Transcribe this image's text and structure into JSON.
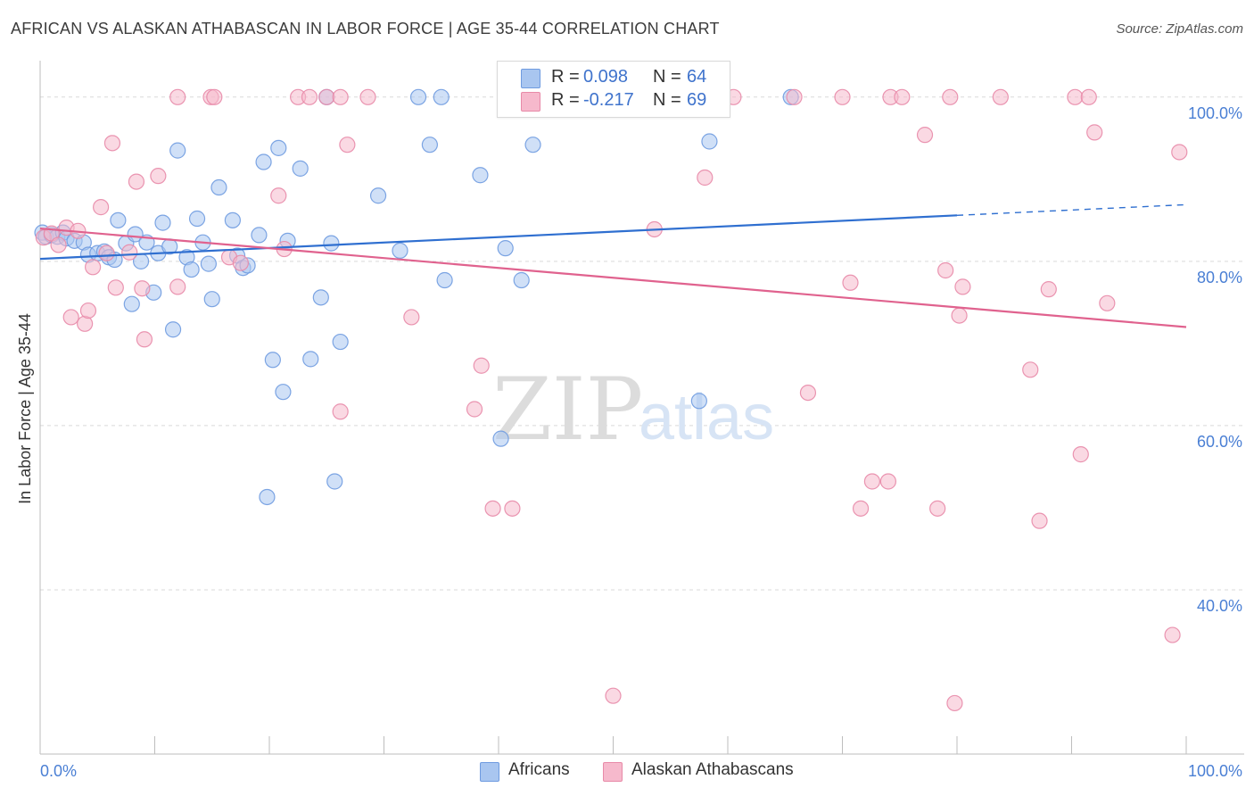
{
  "header": {
    "title": "AFRICAN VS ALASKAN ATHABASCAN IN LABOR FORCE | AGE 35-44 CORRELATION CHART",
    "source": "Source: ZipAtlas.com"
  },
  "watermark": {
    "zip": "ZIP",
    "atlas": "atlas"
  },
  "colors": {
    "blue_fill": "#a9c6f0",
    "blue_stroke": "#6f9be0",
    "blue_line": "#2f6fd0",
    "pink_fill": "#f6b9cc",
    "pink_stroke": "#e88aa8",
    "pink_line": "#e0628e",
    "tick_label": "#4a7fd4",
    "grid": "#d9d9d9"
  },
  "legend": {
    "rows": [
      {
        "r_label": "R =",
        "r_value": "0.098",
        "n_label": "N =",
        "n_value": "64",
        "color": "#a9c6f0"
      },
      {
        "r_label": "R =",
        "r_value": "-0.217",
        "n_label": "N =",
        "n_value": "69",
        "color": "#f6b9cc"
      }
    ]
  },
  "bottom_legend": {
    "series1": "Africans",
    "series2": "Alaskan Athabascans"
  },
  "chart_data": {
    "type": "scatter",
    "title": "AFRICAN VS ALASKAN ATHABASCAN IN LABOR FORCE | AGE 35-44 CORRELATION CHART",
    "xlabel": "",
    "ylabel": "In Labor Force | Age 35-44",
    "xlim": [
      0,
      100
    ],
    "ylim": [
      20,
      104
    ],
    "x_tick_labels": [
      "0.0%",
      "100.0%"
    ],
    "y_ticks": [
      40,
      60,
      80,
      100
    ],
    "y_tick_labels": [
      "40.0%",
      "60.0%",
      "80.0%",
      "100.0%"
    ],
    "grid": true,
    "legend_position": "top-center",
    "series": [
      {
        "name": "Africans",
        "color": "#a9c6f0",
        "r": 0.098,
        "n": 64,
        "trend": {
          "x0": 0,
          "y0": 80.3,
          "x1": 80,
          "y1": 85.6,
          "dash_to_x": 100,
          "dash_to_y": 86.9
        },
        "points": [
          [
            0.2,
            83.5
          ],
          [
            0.5,
            83.0
          ],
          [
            1.0,
            83.2
          ],
          [
            1.5,
            83.0
          ],
          [
            2.0,
            83.5
          ],
          [
            2.3,
            82.8
          ],
          [
            3.0,
            82.5
          ],
          [
            3.8,
            82.3
          ],
          [
            4.2,
            80.8
          ],
          [
            5.0,
            81.0
          ],
          [
            5.6,
            81.2
          ],
          [
            6.0,
            80.5
          ],
          [
            6.5,
            80.2
          ],
          [
            6.8,
            85.0
          ],
          [
            7.5,
            82.2
          ],
          [
            8.0,
            74.8
          ],
          [
            8.3,
            83.3
          ],
          [
            8.8,
            80.0
          ],
          [
            9.3,
            82.3
          ],
          [
            9.9,
            76.2
          ],
          [
            10.3,
            81.0
          ],
          [
            10.7,
            84.7
          ],
          [
            11.3,
            81.8
          ],
          [
            11.6,
            71.7
          ],
          [
            12.0,
            93.5
          ],
          [
            12.8,
            80.5
          ],
          [
            13.2,
            79.0
          ],
          [
            13.7,
            85.2
          ],
          [
            14.2,
            82.3
          ],
          [
            14.7,
            79.7
          ],
          [
            15.0,
            75.4
          ],
          [
            15.6,
            89.0
          ],
          [
            16.8,
            85.0
          ],
          [
            17.2,
            80.7
          ],
          [
            17.7,
            79.2
          ],
          [
            18.1,
            79.5
          ],
          [
            19.1,
            83.2
          ],
          [
            19.5,
            92.1
          ],
          [
            19.8,
            51.3
          ],
          [
            20.3,
            68.0
          ],
          [
            20.8,
            93.8
          ],
          [
            21.2,
            64.1
          ],
          [
            21.6,
            82.5
          ],
          [
            22.7,
            91.3
          ],
          [
            23.6,
            68.1
          ],
          [
            24.5,
            75.6
          ],
          [
            25.0,
            100.0
          ],
          [
            25.4,
            82.2
          ],
          [
            25.7,
            53.2
          ],
          [
            26.2,
            70.2
          ],
          [
            29.5,
            88.0
          ],
          [
            31.4,
            81.3
          ],
          [
            33.0,
            100.0
          ],
          [
            34.0,
            94.2
          ],
          [
            35.0,
            100.0
          ],
          [
            35.3,
            77.7
          ],
          [
            38.4,
            90.5
          ],
          [
            40.2,
            58.4
          ],
          [
            40.6,
            81.6
          ],
          [
            42.0,
            77.7
          ],
          [
            43.0,
            94.2
          ],
          [
            57.5,
            63.0
          ],
          [
            58.4,
            94.6
          ],
          [
            65.5,
            100.0
          ]
        ]
      },
      {
        "name": "Alaskan Athabascans",
        "color": "#f6b9cc",
        "r": -0.217,
        "n": 69,
        "trend": {
          "x0": 0,
          "y0": 84.0,
          "x1": 100,
          "y1": 72.0
        },
        "points": [
          [
            0.3,
            82.9
          ],
          [
            1.0,
            83.4
          ],
          [
            1.6,
            82.0
          ],
          [
            2.3,
            84.1
          ],
          [
            2.7,
            73.2
          ],
          [
            3.3,
            83.7
          ],
          [
            3.9,
            72.4
          ],
          [
            4.2,
            74.0
          ],
          [
            4.6,
            79.3
          ],
          [
            5.3,
            86.6
          ],
          [
            5.8,
            81.0
          ],
          [
            6.3,
            94.4
          ],
          [
            6.6,
            76.8
          ],
          [
            7.8,
            81.1
          ],
          [
            8.4,
            89.7
          ],
          [
            8.9,
            76.7
          ],
          [
            9.1,
            70.5
          ],
          [
            10.3,
            90.4
          ],
          [
            12.0,
            100.0
          ],
          [
            12.0,
            76.9
          ],
          [
            14.9,
            100.0
          ],
          [
            15.2,
            100.0
          ],
          [
            16.5,
            80.5
          ],
          [
            17.5,
            79.8
          ],
          [
            20.8,
            88.0
          ],
          [
            21.3,
            81.5
          ],
          [
            22.5,
            100.0
          ],
          [
            23.5,
            100.0
          ],
          [
            25.0,
            100.0
          ],
          [
            26.2,
            100.0
          ],
          [
            26.2,
            61.7
          ],
          [
            26.8,
            94.2
          ],
          [
            28.6,
            100.0
          ],
          [
            32.4,
            73.2
          ],
          [
            37.9,
            62.0
          ],
          [
            38.5,
            67.3
          ],
          [
            39.5,
            49.9
          ],
          [
            41.2,
            49.9
          ],
          [
            50.0,
            27.1
          ],
          [
            53.6,
            83.9
          ],
          [
            58.0,
            90.2
          ],
          [
            60.5,
            100.0
          ],
          [
            65.8,
            100.0
          ],
          [
            67.0,
            64.0
          ],
          [
            70.0,
            100.0
          ],
          [
            70.7,
            77.4
          ],
          [
            71.6,
            49.9
          ],
          [
            72.6,
            53.2
          ],
          [
            74.0,
            53.2
          ],
          [
            74.2,
            100.0
          ],
          [
            75.2,
            100.0
          ],
          [
            77.2,
            95.4
          ],
          [
            78.3,
            49.9
          ],
          [
            79.0,
            78.9
          ],
          [
            79.4,
            100.0
          ],
          [
            79.8,
            26.2
          ],
          [
            80.2,
            73.4
          ],
          [
            83.8,
            100.0
          ],
          [
            86.4,
            66.8
          ],
          [
            87.2,
            48.4
          ],
          [
            88.0,
            76.6
          ],
          [
            90.3,
            100.0
          ],
          [
            90.8,
            56.5
          ],
          [
            91.5,
            100.0
          ],
          [
            92.0,
            95.7
          ],
          [
            93.1,
            74.9
          ],
          [
            98.8,
            34.5
          ],
          [
            99.4,
            93.3
          ],
          [
            80.5,
            76.9
          ]
        ]
      }
    ]
  }
}
